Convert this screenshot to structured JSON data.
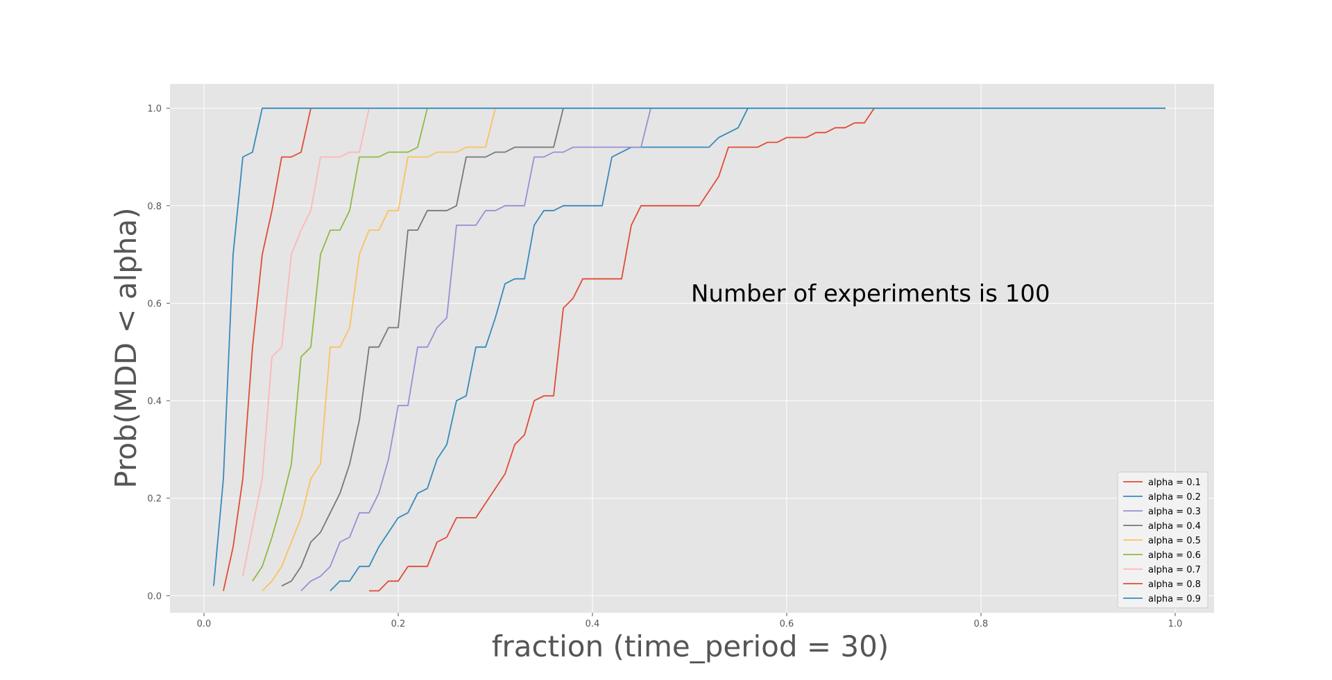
{
  "chart_data": {
    "type": "line",
    "title": "",
    "xlabel": "fraction (time_period = 30)",
    "ylabel": "Prob(MDD < alpha)",
    "annotation": "Number of experiments is 100",
    "xlim": [
      -0.035,
      1.04
    ],
    "ylim": [
      -0.035,
      1.05
    ],
    "xticks": [
      0.0,
      0.2,
      0.4,
      0.6,
      0.8,
      1.0
    ],
    "xtick_labels": [
      "0.0",
      "0.2",
      "0.4",
      "0.6",
      "0.8",
      "1.0"
    ],
    "yticks": [
      0.0,
      0.2,
      0.4,
      0.6,
      0.8,
      1.0
    ],
    "ytick_labels": [
      "0.0",
      "0.2",
      "0.4",
      "0.6",
      "0.8",
      "1.0"
    ],
    "grid": true,
    "legend_position": "bottom-right",
    "series": [
      {
        "name": "alpha = 0.1",
        "color": "#E24A33",
        "points": [
          [
            0.17,
            0.01
          ],
          [
            0.18,
            0.01
          ],
          [
            0.19,
            0.03
          ],
          [
            0.2,
            0.03
          ],
          [
            0.21,
            0.06
          ],
          [
            0.23,
            0.06
          ],
          [
            0.24,
            0.11
          ],
          [
            0.25,
            0.12
          ],
          [
            0.26,
            0.16
          ],
          [
            0.28,
            0.16
          ],
          [
            0.31,
            0.25
          ],
          [
            0.32,
            0.31
          ],
          [
            0.33,
            0.33
          ],
          [
            0.34,
            0.4
          ],
          [
            0.35,
            0.41
          ],
          [
            0.36,
            0.41
          ],
          [
            0.37,
            0.59
          ],
          [
            0.38,
            0.61
          ],
          [
            0.39,
            0.65
          ],
          [
            0.43,
            0.65
          ],
          [
            0.44,
            0.76
          ],
          [
            0.45,
            0.8
          ],
          [
            0.51,
            0.8
          ],
          [
            0.53,
            0.86
          ],
          [
            0.54,
            0.92
          ],
          [
            0.57,
            0.92
          ],
          [
            0.58,
            0.93
          ],
          [
            0.59,
            0.93
          ],
          [
            0.6,
            0.94
          ],
          [
            0.62,
            0.94
          ],
          [
            0.63,
            0.95
          ],
          [
            0.64,
            0.95
          ],
          [
            0.65,
            0.96
          ],
          [
            0.66,
            0.96
          ],
          [
            0.67,
            0.97
          ],
          [
            0.68,
            0.97
          ],
          [
            0.69,
            1.0
          ]
        ]
      },
      {
        "name": "alpha = 0.2",
        "color": "#348ABD",
        "points": [
          [
            0.13,
            0.01
          ],
          [
            0.14,
            0.03
          ],
          [
            0.15,
            0.03
          ],
          [
            0.16,
            0.06
          ],
          [
            0.17,
            0.06
          ],
          [
            0.18,
            0.1
          ],
          [
            0.2,
            0.16
          ],
          [
            0.21,
            0.17
          ],
          [
            0.22,
            0.21
          ],
          [
            0.23,
            0.22
          ],
          [
            0.24,
            0.28
          ],
          [
            0.25,
            0.31
          ],
          [
            0.26,
            0.4
          ],
          [
            0.27,
            0.41
          ],
          [
            0.28,
            0.51
          ],
          [
            0.29,
            0.51
          ],
          [
            0.3,
            0.57
          ],
          [
            0.31,
            0.64
          ],
          [
            0.32,
            0.65
          ],
          [
            0.33,
            0.65
          ],
          [
            0.34,
            0.76
          ],
          [
            0.35,
            0.79
          ],
          [
            0.36,
            0.79
          ],
          [
            0.37,
            0.8
          ],
          [
            0.41,
            0.8
          ],
          [
            0.42,
            0.9
          ],
          [
            0.44,
            0.92
          ],
          [
            0.52,
            0.92
          ],
          [
            0.53,
            0.94
          ],
          [
            0.55,
            0.96
          ],
          [
            0.56,
            1.0
          ]
        ]
      },
      {
        "name": "alpha = 0.3",
        "color": "#988ED5",
        "points": [
          [
            0.1,
            0.01
          ],
          [
            0.11,
            0.03
          ],
          [
            0.12,
            0.04
          ],
          [
            0.13,
            0.06
          ],
          [
            0.14,
            0.11
          ],
          [
            0.15,
            0.12
          ],
          [
            0.16,
            0.17
          ],
          [
            0.17,
            0.17
          ],
          [
            0.18,
            0.21
          ],
          [
            0.19,
            0.28
          ],
          [
            0.2,
            0.39
          ],
          [
            0.21,
            0.39
          ],
          [
            0.22,
            0.51
          ],
          [
            0.23,
            0.51
          ],
          [
            0.24,
            0.55
          ],
          [
            0.25,
            0.57
          ],
          [
            0.26,
            0.76
          ],
          [
            0.28,
            0.76
          ],
          [
            0.29,
            0.79
          ],
          [
            0.3,
            0.79
          ],
          [
            0.31,
            0.8
          ],
          [
            0.33,
            0.8
          ],
          [
            0.34,
            0.9
          ],
          [
            0.35,
            0.9
          ],
          [
            0.36,
            0.91
          ],
          [
            0.37,
            0.91
          ],
          [
            0.38,
            0.92
          ],
          [
            0.45,
            0.92
          ],
          [
            0.46,
            1.0
          ]
        ]
      },
      {
        "name": "alpha = 0.4",
        "color": "#777777",
        "points": [
          [
            0.08,
            0.02
          ],
          [
            0.09,
            0.03
          ],
          [
            0.1,
            0.06
          ],
          [
            0.11,
            0.11
          ],
          [
            0.12,
            0.13
          ],
          [
            0.14,
            0.21
          ],
          [
            0.15,
            0.27
          ],
          [
            0.16,
            0.36
          ],
          [
            0.17,
            0.51
          ],
          [
            0.18,
            0.51
          ],
          [
            0.19,
            0.55
          ],
          [
            0.2,
            0.55
          ],
          [
            0.21,
            0.75
          ],
          [
            0.22,
            0.75
          ],
          [
            0.23,
            0.79
          ],
          [
            0.25,
            0.79
          ],
          [
            0.26,
            0.8
          ],
          [
            0.27,
            0.9
          ],
          [
            0.29,
            0.9
          ],
          [
            0.3,
            0.91
          ],
          [
            0.31,
            0.91
          ],
          [
            0.32,
            0.92
          ],
          [
            0.36,
            0.92
          ],
          [
            0.37,
            1.0
          ]
        ]
      },
      {
        "name": "alpha = 0.5",
        "color": "#FBC15E",
        "points": [
          [
            0.06,
            0.01
          ],
          [
            0.07,
            0.03
          ],
          [
            0.08,
            0.06
          ],
          [
            0.1,
            0.16
          ],
          [
            0.11,
            0.24
          ],
          [
            0.12,
            0.27
          ],
          [
            0.13,
            0.51
          ],
          [
            0.14,
            0.51
          ],
          [
            0.15,
            0.55
          ],
          [
            0.16,
            0.7
          ],
          [
            0.17,
            0.75
          ],
          [
            0.18,
            0.75
          ],
          [
            0.19,
            0.79
          ],
          [
            0.2,
            0.79
          ],
          [
            0.21,
            0.9
          ],
          [
            0.23,
            0.9
          ],
          [
            0.24,
            0.91
          ],
          [
            0.26,
            0.91
          ],
          [
            0.27,
            0.92
          ],
          [
            0.29,
            0.92
          ],
          [
            0.3,
            1.0
          ]
        ]
      },
      {
        "name": "alpha = 0.6",
        "color": "#8EBA42",
        "points": [
          [
            0.05,
            0.03
          ],
          [
            0.06,
            0.06
          ],
          [
            0.07,
            0.12
          ],
          [
            0.08,
            0.19
          ],
          [
            0.09,
            0.27
          ],
          [
            0.1,
            0.49
          ],
          [
            0.11,
            0.51
          ],
          [
            0.12,
            0.7
          ],
          [
            0.13,
            0.75
          ],
          [
            0.14,
            0.75
          ],
          [
            0.15,
            0.79
          ],
          [
            0.16,
            0.9
          ],
          [
            0.18,
            0.9
          ],
          [
            0.19,
            0.91
          ],
          [
            0.21,
            0.91
          ],
          [
            0.22,
            0.92
          ],
          [
            0.23,
            1.0
          ]
        ]
      },
      {
        "name": "alpha = 0.7",
        "color": "#FFB5B8",
        "points": [
          [
            0.04,
            0.04
          ],
          [
            0.05,
            0.14
          ],
          [
            0.06,
            0.24
          ],
          [
            0.07,
            0.49
          ],
          [
            0.08,
            0.51
          ],
          [
            0.09,
            0.7
          ],
          [
            0.1,
            0.75
          ],
          [
            0.11,
            0.79
          ],
          [
            0.12,
            0.9
          ],
          [
            0.14,
            0.9
          ],
          [
            0.15,
            0.91
          ],
          [
            0.16,
            0.91
          ],
          [
            0.17,
            1.0
          ]
        ]
      },
      {
        "name": "alpha = 0.8",
        "color": "#E24A33",
        "points": [
          [
            0.02,
            0.01
          ],
          [
            0.03,
            0.1
          ],
          [
            0.04,
            0.24
          ],
          [
            0.05,
            0.51
          ],
          [
            0.06,
            0.7
          ],
          [
            0.07,
            0.79
          ],
          [
            0.08,
            0.9
          ],
          [
            0.09,
            0.9
          ],
          [
            0.1,
            0.91
          ],
          [
            0.11,
            1.0
          ]
        ]
      },
      {
        "name": "alpha = 0.9",
        "color": "#348ABD",
        "points": [
          [
            0.01,
            0.02
          ],
          [
            0.02,
            0.24
          ],
          [
            0.03,
            0.7
          ],
          [
            0.04,
            0.9
          ],
          [
            0.05,
            0.91
          ],
          [
            0.06,
            1.0
          ],
          [
            0.99,
            1.0
          ]
        ]
      }
    ]
  },
  "colors": {
    "plot_background": "#E5E5E5",
    "grid": "#FFFFFF",
    "legend_background": "#F2F2F2"
  }
}
